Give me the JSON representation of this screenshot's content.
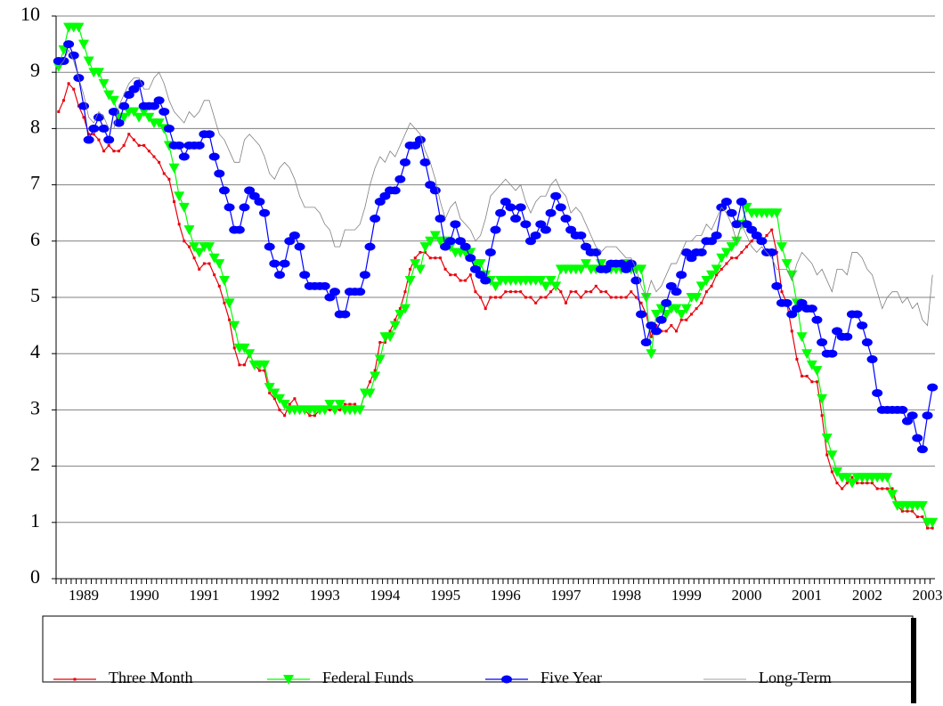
{
  "chart_data": {
    "type": "line",
    "categories": [
      null,
      null,
      null,
      null,
      null,
      "1989",
      null,
      null,
      null,
      null,
      null,
      null,
      null,
      null,
      null,
      null,
      null,
      "1990",
      null,
      null,
      null,
      null,
      null,
      null,
      null,
      null,
      null,
      null,
      null,
      "1991",
      null,
      null,
      null,
      null,
      null,
      null,
      null,
      null,
      null,
      null,
      null,
      "1992",
      null,
      null,
      null,
      null,
      null,
      null,
      null,
      null,
      null,
      null,
      null,
      "1993",
      null,
      null,
      null,
      null,
      null,
      null,
      null,
      null,
      null,
      null,
      null,
      "1994",
      null,
      null,
      null,
      null,
      null,
      null,
      null,
      null,
      null,
      null,
      null,
      "1995",
      null,
      null,
      null,
      null,
      null,
      null,
      null,
      null,
      null,
      null,
      null,
      "1996",
      null,
      null,
      null,
      null,
      null,
      null,
      null,
      null,
      null,
      null,
      null,
      "1997",
      null,
      null,
      null,
      null,
      null,
      null,
      null,
      null,
      null,
      null,
      null,
      "1998",
      null,
      null,
      null,
      null,
      null,
      null,
      null,
      null,
      null,
      null,
      null,
      "1999",
      null,
      null,
      null,
      null,
      null,
      null,
      null,
      null,
      null,
      null,
      null,
      "2000",
      null,
      null,
      null,
      null,
      null,
      null,
      null,
      null,
      null,
      null,
      null,
      "2001",
      null,
      null,
      null,
      null,
      null,
      null,
      null,
      null,
      null,
      null,
      null,
      "2002",
      null,
      null,
      null,
      null,
      null,
      null,
      null,
      null,
      null,
      null,
      null,
      "2003",
      null
    ],
    "series": [
      {
        "name": "Three Month",
        "color": "#e8000b",
        "marker": "square",
        "values": [
          8.3,
          8.5,
          8.8,
          8.7,
          8.4,
          8.2,
          7.9,
          7.9,
          7.8,
          7.6,
          7.7,
          7.6,
          7.6,
          7.7,
          7.9,
          7.8,
          7.7,
          7.7,
          7.6,
          7.5,
          7.4,
          7.2,
          7.1,
          6.7,
          6.3,
          6.0,
          5.9,
          5.7,
          5.5,
          5.6,
          5.6,
          5.4,
          5.2,
          4.9,
          4.6,
          4.1,
          3.8,
          3.8,
          4.0,
          3.8,
          3.7,
          3.7,
          3.3,
          3.2,
          3.0,
          2.9,
          3.1,
          3.2,
          3.0,
          3.0,
          2.9,
          2.9,
          3.0,
          3.0,
          3.0,
          3.0,
          3.0,
          3.1,
          3.1,
          3.1,
          3.0,
          3.3,
          3.5,
          3.7,
          4.2,
          4.2,
          4.4,
          4.6,
          4.8,
          5.1,
          5.5,
          5.7,
          5.8,
          5.8,
          5.7,
          5.7,
          5.7,
          5.5,
          5.4,
          5.4,
          5.3,
          5.3,
          5.4,
          5.1,
          5.0,
          4.8,
          5.0,
          5.0,
          5.0,
          5.1,
          5.1,
          5.1,
          5.1,
          5.0,
          5.0,
          4.9,
          5.0,
          5.0,
          5.1,
          5.2,
          5.1,
          4.9,
          5.1,
          5.1,
          5.0,
          5.1,
          5.1,
          5.2,
          5.1,
          5.1,
          5.0,
          5.0,
          5.0,
          5.0,
          5.1,
          5.0,
          4.9,
          4.7,
          4.3,
          4.5,
          4.4,
          4.4,
          4.5,
          4.4,
          4.6,
          4.6,
          4.7,
          4.8,
          4.9,
          5.1,
          5.2,
          5.4,
          5.5,
          5.6,
          5.7,
          5.7,
          5.8,
          5.9,
          6.0,
          6.1,
          6.0,
          6.1,
          6.2,
          5.8,
          5.1,
          4.9,
          4.4,
          3.9,
          3.6,
          3.6,
          3.5,
          3.5,
          2.9,
          2.2,
          1.9,
          1.7,
          1.6,
          1.7,
          1.8,
          1.7,
          1.7,
          1.7,
          1.7,
          1.6,
          1.6,
          1.6,
          1.6,
          1.3,
          1.2,
          1.2,
          1.2,
          1.1,
          1.1,
          0.9,
          0.9
        ]
      },
      {
        "name": "Federal Funds",
        "color": "#00ff00",
        "marker": "triangle",
        "values": [
          9.1,
          9.4,
          9.8,
          9.8,
          9.8,
          9.5,
          9.2,
          9.0,
          9.0,
          8.8,
          8.6,
          8.5,
          8.2,
          8.2,
          8.3,
          8.3,
          8.2,
          8.3,
          8.2,
          8.1,
          8.1,
          8.0,
          7.7,
          7.3,
          6.8,
          6.6,
          6.2,
          5.9,
          5.8,
          5.9,
          5.9,
          5.7,
          5.6,
          5.3,
          4.9,
          4.5,
          4.1,
          4.1,
          4.0,
          3.8,
          3.8,
          3.8,
          3.4,
          3.3,
          3.2,
          3.1,
          3.0,
          3.0,
          3.0,
          3.0,
          3.0,
          3.0,
          3.0,
          3.0,
          3.1,
          3.0,
          3.1,
          3.0,
          3.0,
          3.0,
          3.0,
          3.3,
          3.3,
          3.6,
          3.9,
          4.3,
          4.3,
          4.5,
          4.7,
          4.8,
          5.3,
          5.6,
          5.5,
          5.9,
          6.0,
          6.1,
          6.0,
          6.0,
          5.9,
          5.8,
          5.8,
          5.8,
          5.8,
          5.6,
          5.6,
          5.4,
          5.3,
          5.2,
          5.3,
          5.3,
          5.3,
          5.3,
          5.3,
          5.3,
          5.3,
          5.3,
          5.3,
          5.2,
          5.3,
          5.2,
          5.5,
          5.5,
          5.5,
          5.5,
          5.5,
          5.6,
          5.5,
          5.5,
          5.6,
          5.5,
          5.5,
          5.5,
          5.5,
          5.6,
          5.5,
          5.5,
          5.5,
          5.0,
          4.0,
          4.7,
          4.8,
          4.7,
          4.8,
          4.8,
          4.7,
          4.8,
          5.0,
          5.0,
          5.2,
          5.3,
          5.4,
          5.5,
          5.7,
          5.8,
          5.9,
          6.0,
          6.3,
          6.6,
          6.5,
          6.5,
          6.5,
          6.5,
          6.5,
          6.5,
          5.9,
          5.6,
          5.4,
          4.9,
          4.3,
          4.0,
          3.8,
          3.7,
          3.2,
          2.5,
          2.2,
          1.9,
          1.8,
          1.8,
          1.7,
          1.8,
          1.8,
          1.8,
          1.8,
          1.8,
          1.8,
          1.8,
          1.5,
          1.3,
          1.3,
          1.3,
          1.3,
          1.3,
          1.3,
          1.0,
          1.0
        ]
      },
      {
        "name": "Five Year",
        "color": "#0000ff",
        "marker": "circle",
        "values": [
          9.2,
          9.2,
          9.5,
          9.3,
          8.9,
          8.4,
          7.8,
          8.0,
          8.2,
          8.0,
          7.8,
          8.3,
          8.1,
          8.4,
          8.6,
          8.7,
          8.8,
          8.4,
          8.4,
          8.4,
          8.5,
          8.3,
          8.0,
          7.7,
          7.7,
          7.5,
          7.7,
          7.7,
          7.7,
          7.9,
          7.9,
          7.5,
          7.2,
          6.9,
          6.6,
          6.2,
          6.2,
          6.6,
          6.9,
          6.8,
          6.7,
          6.5,
          5.9,
          5.6,
          5.4,
          5.6,
          6.0,
          6.1,
          5.9,
          5.4,
          5.2,
          5.2,
          5.2,
          5.2,
          5.0,
          5.1,
          4.7,
          4.7,
          5.1,
          5.1,
          5.1,
          5.4,
          5.9,
          6.4,
          6.7,
          6.8,
          6.9,
          6.9,
          7.1,
          7.4,
          7.7,
          7.7,
          7.8,
          7.4,
          7.0,
          6.9,
          6.4,
          5.9,
          6.0,
          6.3,
          6.0,
          5.9,
          5.7,
          5.5,
          5.4,
          5.3,
          5.8,
          6.2,
          6.5,
          6.7,
          6.6,
          6.4,
          6.6,
          6.3,
          6.0,
          6.1,
          6.3,
          6.2,
          6.5,
          6.8,
          6.6,
          6.4,
          6.2,
          6.1,
          6.1,
          5.9,
          5.8,
          5.8,
          5.5,
          5.5,
          5.6,
          5.6,
          5.6,
          5.5,
          5.6,
          5.3,
          4.7,
          4.2,
          4.5,
          4.4,
          4.6,
          4.9,
          5.2,
          5.1,
          5.4,
          5.8,
          5.7,
          5.8,
          5.8,
          6.0,
          6.0,
          6.1,
          6.6,
          6.7,
          6.5,
          6.3,
          6.7,
          6.3,
          6.2,
          6.1,
          6.0,
          5.8,
          5.8,
          5.2,
          4.9,
          4.9,
          4.7,
          4.8,
          4.9,
          4.8,
          4.8,
          4.6,
          4.2,
          4.0,
          4.0,
          4.4,
          4.3,
          4.3,
          4.7,
          4.7,
          4.5,
          4.2,
          3.9,
          3.3,
          3.0,
          3.0,
          3.0,
          3.0,
          3.0,
          2.8,
          2.9,
          2.5,
          2.3,
          2.9,
          3.4
        ]
      },
      {
        "name": "Long-Term",
        "color": "#808080",
        "marker": "none",
        "values": [
          9.1,
          9.2,
          9.4,
          9.2,
          8.9,
          8.6,
          8.2,
          8.1,
          8.3,
          8.2,
          8.0,
          8.0,
          8.4,
          8.6,
          8.8,
          8.9,
          8.9,
          8.7,
          8.7,
          8.9,
          9.0,
          8.8,
          8.5,
          8.3,
          8.2,
          8.1,
          8.3,
          8.2,
          8.3,
          8.5,
          8.5,
          8.2,
          7.9,
          7.8,
          7.6,
          7.4,
          7.4,
          7.8,
          7.9,
          7.8,
          7.7,
          7.5,
          7.2,
          7.1,
          7.3,
          7.4,
          7.3,
          7.1,
          6.8,
          6.6,
          6.6,
          6.6,
          6.5,
          6.3,
          6.2,
          5.9,
          5.9,
          6.2,
          6.2,
          6.2,
          6.3,
          6.6,
          7.0,
          7.3,
          7.5,
          7.4,
          7.6,
          7.5,
          7.7,
          7.9,
          8.1,
          8.0,
          7.9,
          7.6,
          7.4,
          7.1,
          6.7,
          6.4,
          6.6,
          6.7,
          6.4,
          6.3,
          6.2,
          6.0,
          6.1,
          6.4,
          6.8,
          6.9,
          7.0,
          7.1,
          7.0,
          6.9,
          7.0,
          6.7,
          6.5,
          6.7,
          6.8,
          6.8,
          7.0,
          7.1,
          6.9,
          6.8,
          6.5,
          6.6,
          6.5,
          6.3,
          6.1,
          5.9,
          5.8,
          5.9,
          5.9,
          5.9,
          5.8,
          5.7,
          5.7,
          5.5,
          5.2,
          5.0,
          5.3,
          5.1,
          5.2,
          5.4,
          5.6,
          5.6,
          5.8,
          6.0,
          6.0,
          6.1,
          6.1,
          6.3,
          6.2,
          6.4,
          6.6,
          6.5,
          6.3,
          6.0,
          6.3,
          6.1,
          5.9,
          5.8,
          5.9,
          5.8,
          5.7,
          5.5,
          5.5,
          5.5,
          5.3,
          5.6,
          5.8,
          5.7,
          5.6,
          5.4,
          5.5,
          5.3,
          5.1,
          5.5,
          5.5,
          5.4,
          5.8,
          5.8,
          5.7,
          5.5,
          5.4,
          5.1,
          4.8,
          5.0,
          5.1,
          5.1,
          4.9,
          5.0,
          4.8,
          4.9,
          4.6,
          4.5,
          5.4
        ]
      }
    ],
    "ylim": [
      0,
      10
    ],
    "yticks": [
      0,
      1,
      2,
      3,
      4,
      5,
      6,
      7,
      8,
      9,
      10
    ],
    "grid": true,
    "legend": "bottom"
  }
}
